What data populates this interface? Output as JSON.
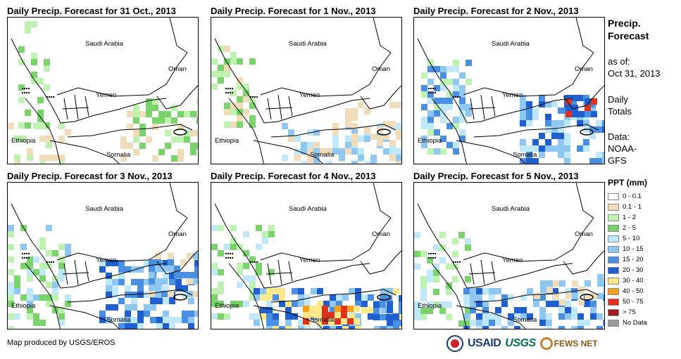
{
  "panels": [
    {
      "title": "Daily Precip. Forecast for 31 Oct., 2013"
    },
    {
      "title": "Daily Precip. Forecast for 1 Nov., 2013"
    },
    {
      "title": "Daily Precip. Forecast for 2 Nov., 2013"
    },
    {
      "title": "Daily Precip. Forecast for 3 Nov., 2013"
    },
    {
      "title": "Daily Precip. Forecast for 4 Nov., 2013"
    },
    {
      "title": "Daily Precip. Forecast for 5 Nov., 2013"
    }
  ],
  "map_labels": {
    "saudi": "Saudi Arabia",
    "oman": "Oman",
    "yemen": "Yemen",
    "ethiopia": "Ethiopia",
    "somalia": "Somalia"
  },
  "sidebar": {
    "heading_line1": "Precip.",
    "heading_line2": "Forecast",
    "asof_label": "as of:",
    "asof_date": "Oct 31, 2013",
    "daily_line1": "Daily",
    "daily_line2": "Totals",
    "data_label": "Data:",
    "data_line2": "NOAA-",
    "data_line3": "GFS"
  },
  "legend": {
    "title": "PPT (mm)",
    "items": [
      {
        "label": "0 - 0.1",
        "color": "#ffffff"
      },
      {
        "label": "0.1 - 1",
        "color": "#f0dcb9"
      },
      {
        "label": "1 - 2",
        "color": "#bdf2b0"
      },
      {
        "label": "2 - 5",
        "color": "#7ad46b"
      },
      {
        "label": "5 - 10",
        "color": "#bfe9fa"
      },
      {
        "label": "10 - 15",
        "color": "#8ec8f2"
      },
      {
        "label": "15 - 20",
        "color": "#4a90e2"
      },
      {
        "label": "20 - 30",
        "color": "#1f5fcf"
      },
      {
        "label": "30 - 40",
        "color": "#fde88a"
      },
      {
        "label": "40 - 50",
        "color": "#f7a21b"
      },
      {
        "label": "50 - 75",
        "color": "#e0301e"
      },
      {
        "label": "> 75",
        "color": "#9e1b1b"
      },
      {
        "label": "No Data",
        "color": "#999999"
      }
    ]
  },
  "footer": {
    "credit": "Map produced by USGS/EROS"
  },
  "logos": {
    "usaid": "USAID",
    "usgs": "USGS",
    "fews": "FEWS NET"
  }
}
